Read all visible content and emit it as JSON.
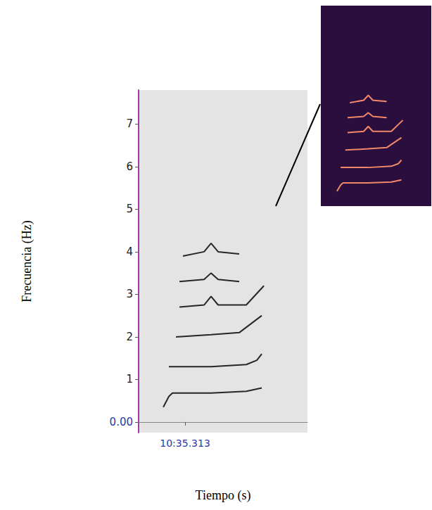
{
  "chart_data": {
    "type": "line",
    "x_label": "Tiempo (s)",
    "y_label": "Frecuencia (Hz)",
    "xlim": [
      634.707,
      636.909
    ],
    "xticks": [
      {
        "value": 635.313,
        "label": "10:35.313"
      }
    ],
    "ylim": [
      -0.25,
      7.8
    ],
    "yticks": [
      {
        "value": 0,
        "label": "0.00"
      },
      1,
      2,
      3,
      4,
      5,
      6,
      7
    ],
    "grid": false,
    "series": [
      {
        "color": "#262626",
        "x": [
          635.029,
          635.102,
          635.148,
          635.652,
          636.111,
          636.313
        ],
        "values": [
          0.35,
          0.6,
          0.68,
          0.68,
          0.72,
          0.8
        ]
      },
      {
        "color": "#262626",
        "x": [
          635.102,
          635.652,
          636.111,
          636.249,
          636.313
        ],
        "values": [
          1.3,
          1.3,
          1.35,
          1.45,
          1.6
        ]
      },
      {
        "color": "#262626",
        "x": [
          635.194,
          635.652,
          636.019,
          636.313
        ],
        "values": [
          2.0,
          2.05,
          2.1,
          2.5
        ]
      },
      {
        "color": "#262626",
        "x": [
          635.24,
          635.561,
          635.652,
          635.744,
          636.111,
          636.341
        ],
        "values": [
          2.7,
          2.75,
          2.95,
          2.75,
          2.75,
          3.2
        ]
      },
      {
        "color": "#262626",
        "x": [
          635.24,
          635.561,
          635.652,
          635.744,
          636.019
        ],
        "values": [
          3.3,
          3.35,
          3.5,
          3.35,
          3.3
        ]
      },
      {
        "color": "#262626",
        "x": [
          635.285,
          635.561,
          635.652,
          635.744,
          636.019
        ],
        "values": [
          3.9,
          4.0,
          4.2,
          4.0,
          3.95
        ]
      }
    ]
  }
}
